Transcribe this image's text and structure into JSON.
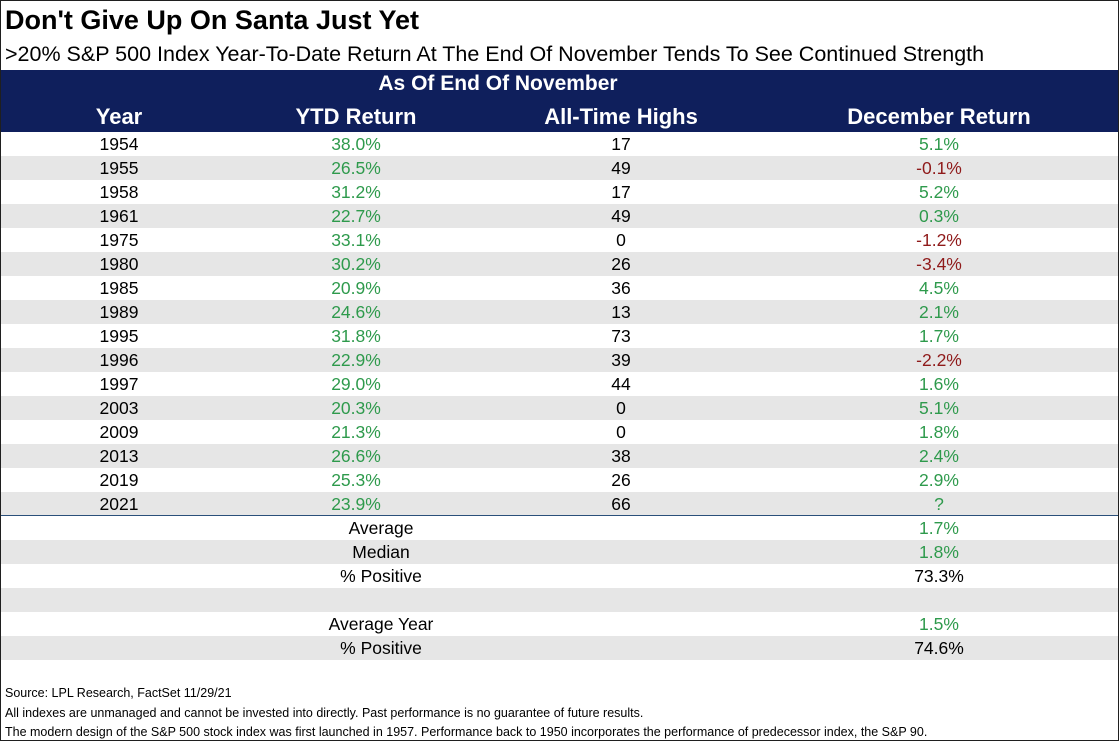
{
  "title": "Don't Give Up On Santa Just Yet",
  "subtitle": ">20% S&P 500 Index Year-To-Date Return At The End Of November Tends To See Continued Strength",
  "colors": {
    "header_bg": "#0f1f5c",
    "positive": "#2e9a4c",
    "negative": "#8f1a1a",
    "row_shade": "#e6e6e6"
  },
  "chart_data": {
    "type": "table",
    "banner": "As Of End Of November",
    "columns": [
      "Year",
      "YTD Return",
      "All-Time Highs",
      "December Return"
    ],
    "rows": [
      {
        "year": "1954",
        "ytd": "38.0%",
        "ath": "17",
        "dec": "5.1%"
      },
      {
        "year": "1955",
        "ytd": "26.5%",
        "ath": "49",
        "dec": "-0.1%"
      },
      {
        "year": "1958",
        "ytd": "31.2%",
        "ath": "17",
        "dec": "5.2%"
      },
      {
        "year": "1961",
        "ytd": "22.7%",
        "ath": "49",
        "dec": "0.3%"
      },
      {
        "year": "1975",
        "ytd": "33.1%",
        "ath": "0",
        "dec": "-1.2%"
      },
      {
        "year": "1980",
        "ytd": "30.2%",
        "ath": "26",
        "dec": "-3.4%"
      },
      {
        "year": "1985",
        "ytd": "20.9%",
        "ath": "36",
        "dec": "4.5%"
      },
      {
        "year": "1989",
        "ytd": "24.6%",
        "ath": "13",
        "dec": "2.1%"
      },
      {
        "year": "1995",
        "ytd": "31.8%",
        "ath": "73",
        "dec": "1.7%"
      },
      {
        "year": "1996",
        "ytd": "22.9%",
        "ath": "39",
        "dec": "-2.2%"
      },
      {
        "year": "1997",
        "ytd": "29.0%",
        "ath": "44",
        "dec": "1.6%"
      },
      {
        "year": "2003",
        "ytd": "20.3%",
        "ath": "0",
        "dec": "5.1%"
      },
      {
        "year": "2009",
        "ytd": "21.3%",
        "ath": "0",
        "dec": "1.8%"
      },
      {
        "year": "2013",
        "ytd": "26.6%",
        "ath": "38",
        "dec": "2.4%"
      },
      {
        "year": "2019",
        "ytd": "25.3%",
        "ath": "26",
        "dec": "2.9%"
      },
      {
        "year": "2021",
        "ytd": "23.9%",
        "ath": "66",
        "dec": "?"
      }
    ],
    "summary": [
      {
        "label": "Average",
        "value": "1.7%",
        "color": "positive"
      },
      {
        "label": "Median",
        "value": "1.8%",
        "color": "positive"
      },
      {
        "label": "% Positive",
        "value": "73.3%",
        "color": "black"
      },
      {
        "label": "",
        "value": "",
        "color": "black"
      },
      {
        "label": "Average Year",
        "value": "1.5%",
        "color": "positive"
      },
      {
        "label": "% Positive",
        "value": "74.6%",
        "color": "black"
      }
    ]
  },
  "footer": [
    "Source: LPL Research, FactSet 11/29/21",
    "All indexes are unmanaged and cannot be invested into directly. Past performance is no guarantee of future results.",
    "The modern design of the S&P 500 stock index was first launched in 1957. Performance back to 1950 incorporates the performance of predecessor index, the S&P 90."
  ]
}
